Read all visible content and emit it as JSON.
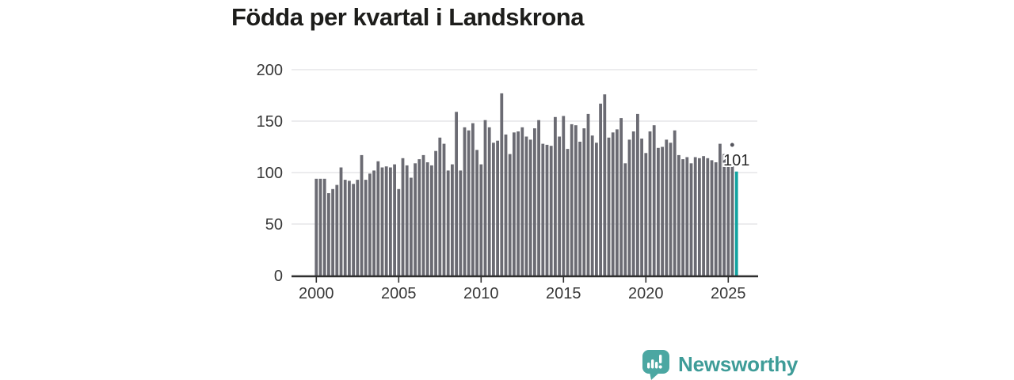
{
  "title": "Födda per kvartal i Landskrona",
  "annotation": {
    "last_value_label": "101"
  },
  "logo": {
    "text": "Newsworthy",
    "mark": "speech-bubble-bar-chart-icon"
  },
  "colors": {
    "bar": "#6b6b73",
    "highlight": "#12a3a0",
    "grid": "#e1e1e3",
    "axis": "#2f2f2f",
    "axis_text": "#383838",
    "title_text": "#1d1d1b",
    "annotation_text": "#2b2b2b",
    "annotation_dot": "#55555d",
    "logo_teal": "#4ba7a2",
    "logo_text_teal": "#3e9c98",
    "background": "#ffffff"
  },
  "chart_data": {
    "type": "bar",
    "title": "Födda per kvartal i Landskrona",
    "periodicity": "quarterly",
    "x_axis": {
      "start_year": 2000,
      "start_quarter": 1,
      "end_year": 2025,
      "end_quarter": 3,
      "tick_labels": [
        "2000",
        "2005",
        "2010",
        "2015",
        "2020",
        "2025"
      ]
    },
    "y_axis": {
      "tick_values": [
        0,
        50,
        100,
        150,
        200
      ],
      "tick_labels": [
        "0",
        "50",
        "100",
        "150",
        "200"
      ]
    },
    "ylim": [
      0,
      200
    ],
    "grid": true,
    "legend": "none",
    "highlight_last_bar": true,
    "last_value_label": "101",
    "values": [
      94,
      94,
      94,
      80,
      84,
      88,
      105,
      93,
      92,
      89,
      93,
      117,
      93,
      99,
      102,
      111,
      105,
      106,
      105,
      108,
      84,
      114,
      107,
      95,
      109,
      113,
      117,
      110,
      107,
      121,
      134,
      128,
      102,
      108,
      159,
      102,
      144,
      141,
      148,
      122,
      108,
      151,
      144,
      129,
      131,
      177,
      137,
      118,
      139,
      140,
      144,
      135,
      132,
      143,
      151,
      128,
      127,
      126,
      154,
      135,
      155,
      123,
      147,
      146,
      130,
      143,
      157,
      136,
      129,
      167,
      176,
      134,
      139,
      142,
      153,
      109,
      132,
      140,
      157,
      133,
      119,
      140,
      146,
      124,
      125,
      132,
      129,
      141,
      117,
      113,
      115,
      109,
      115,
      114,
      116,
      114,
      112,
      110,
      128,
      118,
      108,
      106,
      101
    ]
  }
}
